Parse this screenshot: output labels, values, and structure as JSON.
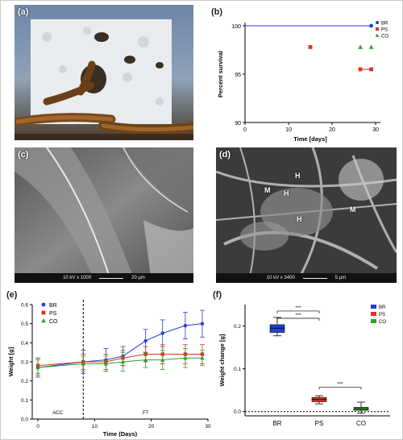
{
  "panels": {
    "a": {
      "label": "(a)"
    },
    "b": {
      "label": "(b)"
    },
    "c": {
      "label": "(c)",
      "scalebar": "10 kV  x 1000",
      "scaletext": "20 µm"
    },
    "d": {
      "label": "(d)",
      "scalebar": "10 kV  x 3400",
      "scaletext": "5 µm",
      "annotations": [
        "M",
        "H",
        "H",
        "H",
        "M"
      ]
    },
    "e": {
      "label": "(e)"
    },
    "f": {
      "label": "(f)"
    }
  },
  "colors": {
    "BR": "#1f3fd6",
    "PS": "#e0301e",
    "CO": "#2ca02c"
  },
  "chart_data": [
    {
      "panel": "b",
      "type": "scatter",
      "xlabel": "Time [days]",
      "ylabel": "Percent survival",
      "xlim": [
        0,
        30
      ],
      "ylim": [
        90,
        100
      ],
      "xticks": [
        0,
        10,
        20,
        30
      ],
      "yticks": [
        90,
        95,
        100
      ],
      "series": [
        {
          "name": "BR",
          "x": [
            0,
            29
          ],
          "y": [
            100,
            100
          ],
          "line": true
        },
        {
          "name": "PS",
          "x": [
            15,
            26.5,
            29
          ],
          "y": [
            97.8,
            95.5,
            95.5
          ]
        },
        {
          "name": "CO",
          "x": [
            26.5,
            29
          ],
          "y": [
            97.8,
            97.8
          ]
        }
      ]
    },
    {
      "panel": "e",
      "type": "line",
      "xlabel": "Time (Days)",
      "ylabel": "Weight [g]",
      "xlim": [
        -1,
        30
      ],
      "ylim": [
        0,
        0.6
      ],
      "xticks": [
        0,
        10,
        20,
        30
      ],
      "yticks": [
        0.0,
        0.1,
        0.2,
        0.3,
        0.4,
        0.5,
        0.6
      ],
      "phase_labels": [
        "ACC",
        "FT"
      ],
      "phase_split": 8,
      "series": [
        {
          "name": "BR",
          "x": [
            0,
            8,
            12,
            15,
            19,
            22,
            26,
            29
          ],
          "y": [
            0.27,
            0.3,
            0.31,
            0.33,
            0.41,
            0.45,
            0.49,
            0.5
          ],
          "err": [
            0.05,
            0.06,
            0.06,
            0.05,
            0.06,
            0.07,
            0.07,
            0.07
          ]
        },
        {
          "name": "PS",
          "x": [
            0,
            8,
            12,
            15,
            19,
            22,
            26,
            29
          ],
          "y": [
            0.28,
            0.3,
            0.3,
            0.32,
            0.34,
            0.34,
            0.34,
            0.34
          ],
          "err": [
            0.04,
            0.04,
            0.04,
            0.04,
            0.04,
            0.05,
            0.05,
            0.05
          ]
        },
        {
          "name": "CO",
          "x": [
            0,
            8,
            12,
            15,
            19,
            22,
            26,
            29
          ],
          "y": [
            0.27,
            0.29,
            0.29,
            0.3,
            0.31,
            0.31,
            0.32,
            0.32
          ],
          "err": [
            0.04,
            0.04,
            0.04,
            0.05,
            0.04,
            0.05,
            0.05,
            0.04
          ]
        }
      ]
    },
    {
      "panel": "f",
      "type": "box",
      "ylabel": "Weight change [g]",
      "ylim": [
        -0.01,
        0.25
      ],
      "yticks": [
        0.0,
        0.1,
        0.2
      ],
      "categories": [
        "BR",
        "PS",
        "CO"
      ],
      "boxes": [
        {
          "name": "BR",
          "min": 0.177,
          "q1": 0.185,
          "median": 0.195,
          "q3": 0.203,
          "max": 0.22
        },
        {
          "name": "PS",
          "min": 0.018,
          "q1": 0.023,
          "median": 0.028,
          "q3": 0.033,
          "max": 0.037
        },
        {
          "name": "CO",
          "min": -0.004,
          "q1": 0.003,
          "median": 0.006,
          "q3": 0.01,
          "max": 0.022
        }
      ],
      "significance": [
        {
          "from": "BR",
          "to": "PS",
          "label": "***",
          "y": 0.235
        },
        {
          "from": "BR",
          "to": "PS",
          "label": "***",
          "y": 0.218
        },
        {
          "from": "PS",
          "to": "CO",
          "label": "***",
          "y": 0.057
        }
      ]
    }
  ]
}
